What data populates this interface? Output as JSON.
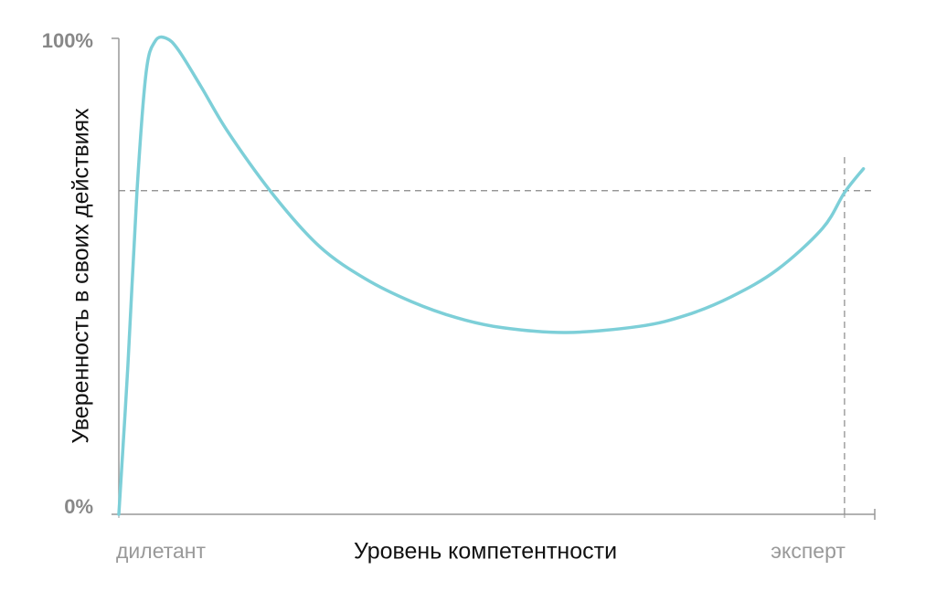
{
  "chart_data": {
    "type": "line",
    "x_label": "Уровень компетентности",
    "y_label": "Уверенность в своих действиях",
    "x": [
      0,
      1.2,
      2.4,
      3.6,
      4.8,
      6.3,
      7.9,
      10.9,
      14.5,
      20.6,
      26.6,
      32.6,
      38.7,
      44.7,
      50.8,
      59.2,
      68.9,
      75,
      81,
      87.1,
      93.1,
      96,
      98.5
    ],
    "series": [
      {
        "color": "#7dcfd8",
        "values": [
          0,
          31.3,
          67.8,
          92.7,
          99.4,
          100,
          97.5,
          89.8,
          80.2,
          66.8,
          56.2,
          49.5,
          44.7,
          41.3,
          39.2,
          38.2,
          39.5,
          41.8,
          45.7,
          51.4,
          60.1,
          67.6,
          72.6
        ]
      }
    ],
    "xlim": [
      0,
      100
    ],
    "ylim": [
      0,
      100
    ],
    "xticks": [
      {
        "value": 0,
        "label": "дилетант"
      },
      {
        "value": 96,
        "label": "эксперт"
      }
    ],
    "yticks": [
      {
        "value": 0,
        "label": "0%"
      },
      {
        "value": 100,
        "label": "100%"
      }
    ],
    "hline": 68,
    "vline": 96
  }
}
